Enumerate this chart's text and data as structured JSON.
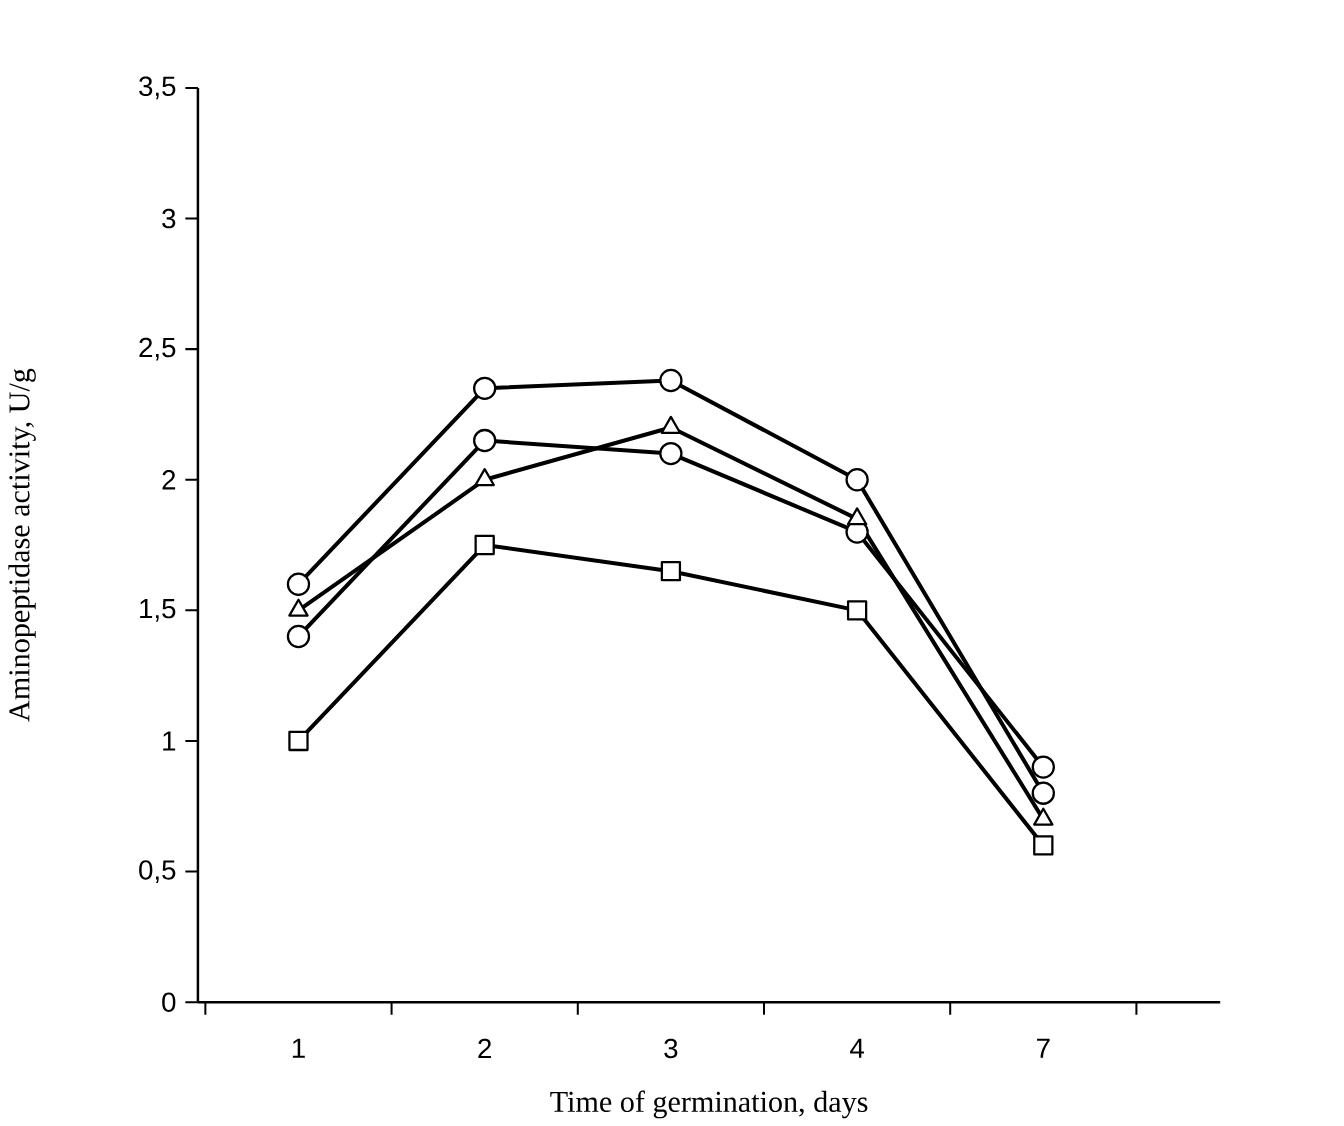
{
  "chart_data": {
    "type": "line",
    "xlabel": "Time of germination, days",
    "ylabel": "Aminopeptidase activity, U/g",
    "categories": [
      "1",
      "2",
      "3",
      "4",
      "7"
    ],
    "ylim": [
      0,
      3.5
    ],
    "yticks": [
      0,
      {
        "value": 0.5,
        "label": "0,5"
      },
      1,
      {
        "value": 1.5,
        "label": "1,5"
      },
      2,
      {
        "value": 2.5,
        "label": "2,5"
      },
      3,
      {
        "value": 3.5,
        "label": "3,5"
      }
    ],
    "line_style": "solid",
    "series": [
      {
        "color": "#000000",
        "marker": "circle",
        "values": [
          1.6,
          2.35,
          2.38,
          2.0,
          0.8
        ]
      },
      {
        "color": "#000000",
        "marker": "circle",
        "values": [
          1.4,
          2.15,
          2.1,
          1.8,
          0.9
        ]
      },
      {
        "color": "#000000",
        "marker": "triangle",
        "values": [
          1.5,
          2.0,
          2.2,
          1.85,
          0.7
        ]
      },
      {
        "color": "#000000",
        "marker": "square",
        "values": [
          1.0,
          1.75,
          1.65,
          1.5,
          0.6
        ]
      }
    ]
  }
}
